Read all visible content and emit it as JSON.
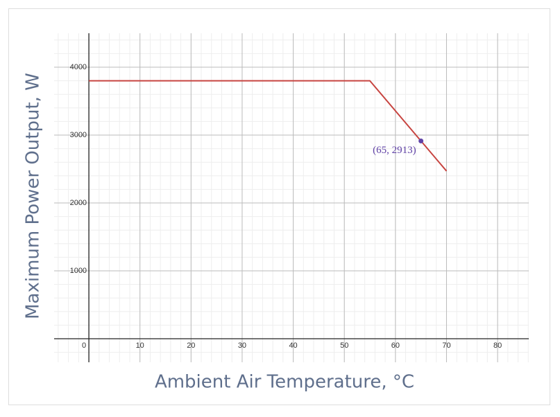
{
  "chart_data": {
    "type": "line",
    "xlabel": "Ambient Air Temperature, °C",
    "ylabel": "Maximum Power Output, W",
    "xlim": [
      -6.8,
      86.1
    ],
    "ylim": [
      -347,
      4500
    ],
    "xticks": [
      0,
      10,
      20,
      30,
      40,
      50,
      60,
      70,
      80
    ],
    "yticks": [
      1000,
      2000,
      3000,
      4000
    ],
    "grid": true,
    "minor_grid": true,
    "series": [
      {
        "color": "#c74440",
        "x": [
          0,
          55,
          70
        ],
        "values": [
          3800,
          3800,
          2470
        ]
      }
    ],
    "points": [
      {
        "x": 65,
        "y": 2913,
        "label": "(65, 2913)",
        "color": "#6042a6"
      }
    ]
  }
}
